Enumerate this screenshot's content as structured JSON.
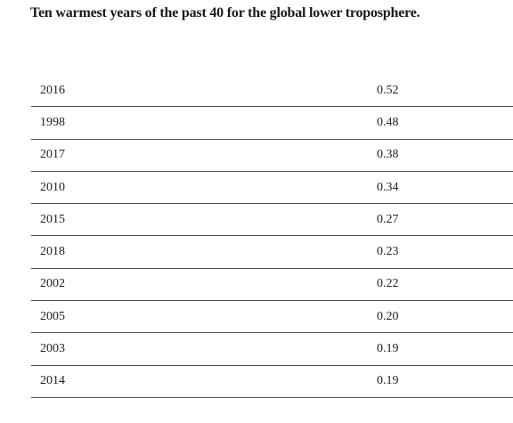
{
  "header": {
    "title": "Ten warmest years of the past 40 for the global lower troposphere."
  },
  "table": {
    "rows": [
      [
        "2016",
        "0.52"
      ],
      [
        "1998",
        "0.48"
      ],
      [
        "2017",
        "0.38"
      ],
      [
        "2010",
        "0.34"
      ],
      [
        "2015",
        "0.27"
      ],
      [
        "2018",
        "0.23"
      ],
      [
        "2002",
        "0.22"
      ],
      [
        "2005",
        "0.20"
      ],
      [
        "2003",
        "0.19"
      ],
      [
        "2014",
        "0.19"
      ]
    ]
  }
}
